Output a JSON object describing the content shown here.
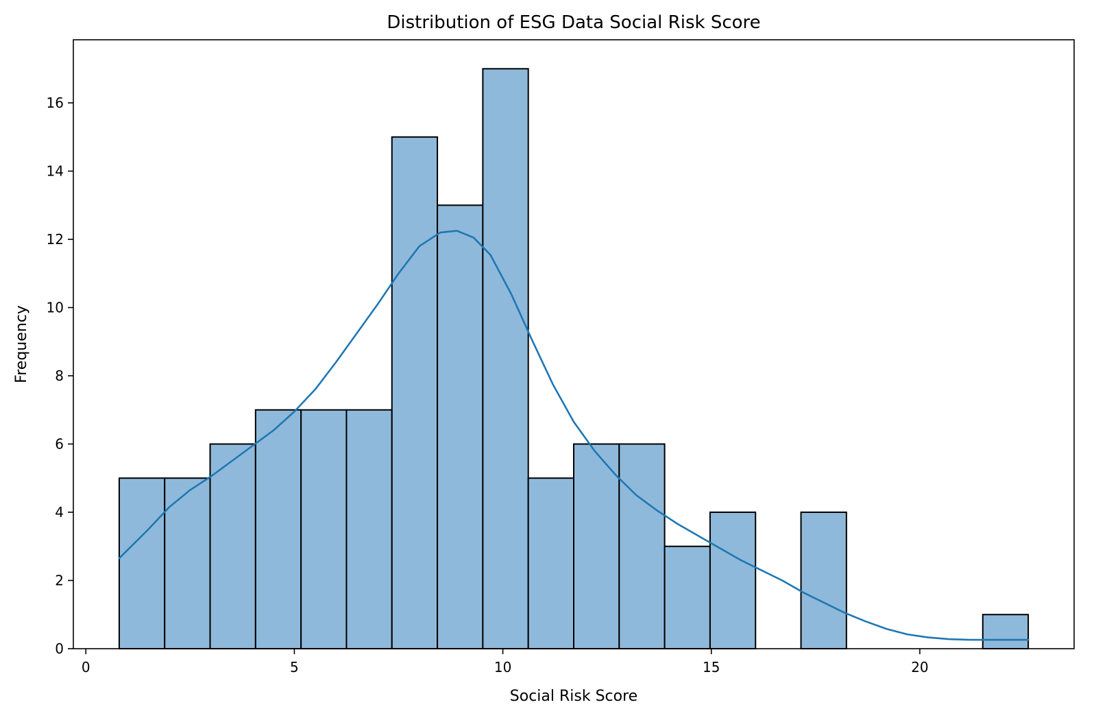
{
  "chart_data": {
    "type": "bar",
    "subtype": "histogram with kde",
    "title": "Distribution of ESG Data Social Risk Score",
    "xlabel": "Social Risk Score",
    "ylabel": "Frequency",
    "xlim": [
      -0.3,
      23.7
    ],
    "ylim": [
      0,
      17.85
    ],
    "xticks": [
      0,
      5,
      10,
      15,
      20
    ],
    "yticks": [
      0,
      2,
      4,
      6,
      8,
      10,
      12,
      14,
      16
    ],
    "grid": false,
    "legend": "none",
    "bar_color": "#8fb9da",
    "bar_edge_color": "#000000",
    "kde_color": "#1f77b4",
    "bins": [
      {
        "x0": 0.8,
        "x1": 1.89,
        "count": 5
      },
      {
        "x0": 1.89,
        "x1": 2.98,
        "count": 5
      },
      {
        "x0": 2.98,
        "x1": 4.07,
        "count": 6
      },
      {
        "x0": 4.07,
        "x1": 5.16,
        "count": 7
      },
      {
        "x0": 5.16,
        "x1": 6.25,
        "count": 7
      },
      {
        "x0": 6.25,
        "x1": 7.34,
        "count": 7
      },
      {
        "x0": 7.34,
        "x1": 8.43,
        "count": 15
      },
      {
        "x0": 8.43,
        "x1": 9.52,
        "count": 13
      },
      {
        "x0": 9.52,
        "x1": 10.61,
        "count": 17
      },
      {
        "x0": 10.61,
        "x1": 11.7,
        "count": 5
      },
      {
        "x0": 11.7,
        "x1": 12.79,
        "count": 6
      },
      {
        "x0": 12.79,
        "x1": 13.88,
        "count": 6
      },
      {
        "x0": 13.88,
        "x1": 14.97,
        "count": 3
      },
      {
        "x0": 14.97,
        "x1": 16.06,
        "count": 4
      },
      {
        "x0": 16.06,
        "x1": 17.15,
        "count": 0
      },
      {
        "x0": 17.15,
        "x1": 18.24,
        "count": 4
      },
      {
        "x0": 18.24,
        "x1": 19.33,
        "count": 0
      },
      {
        "x0": 19.33,
        "x1": 20.42,
        "count": 0
      },
      {
        "x0": 20.42,
        "x1": 21.51,
        "count": 0
      },
      {
        "x0": 21.51,
        "x1": 22.6,
        "count": 1
      }
    ],
    "kde": {
      "x": [
        0.8,
        1.5,
        2.0,
        2.5,
        3.0,
        3.5,
        4.0,
        4.5,
        5.0,
        5.5,
        6.0,
        6.5,
        7.0,
        7.5,
        8.0,
        8.5,
        8.9,
        9.3,
        9.7,
        10.2,
        10.7,
        11.2,
        11.7,
        12.2,
        12.7,
        13.2,
        13.7,
        14.2,
        14.7,
        15.2,
        15.7,
        16.2,
        16.7,
        17.2,
        17.7,
        18.2,
        18.7,
        19.2,
        19.7,
        20.2,
        20.7,
        21.2,
        21.7,
        22.2,
        22.6
      ],
      "y": [
        2.65,
        3.5,
        4.15,
        4.65,
        5.05,
        5.5,
        5.95,
        6.4,
        6.95,
        7.6,
        8.4,
        9.25,
        10.1,
        11.0,
        11.8,
        12.2,
        12.25,
        12.05,
        11.55,
        10.4,
        9.05,
        7.75,
        6.65,
        5.8,
        5.1,
        4.5,
        4.05,
        3.65,
        3.3,
        2.95,
        2.6,
        2.3,
        2.0,
        1.65,
        1.35,
        1.05,
        0.8,
        0.58,
        0.42,
        0.33,
        0.28,
        0.26,
        0.26,
        0.26,
        0.26
      ]
    }
  }
}
